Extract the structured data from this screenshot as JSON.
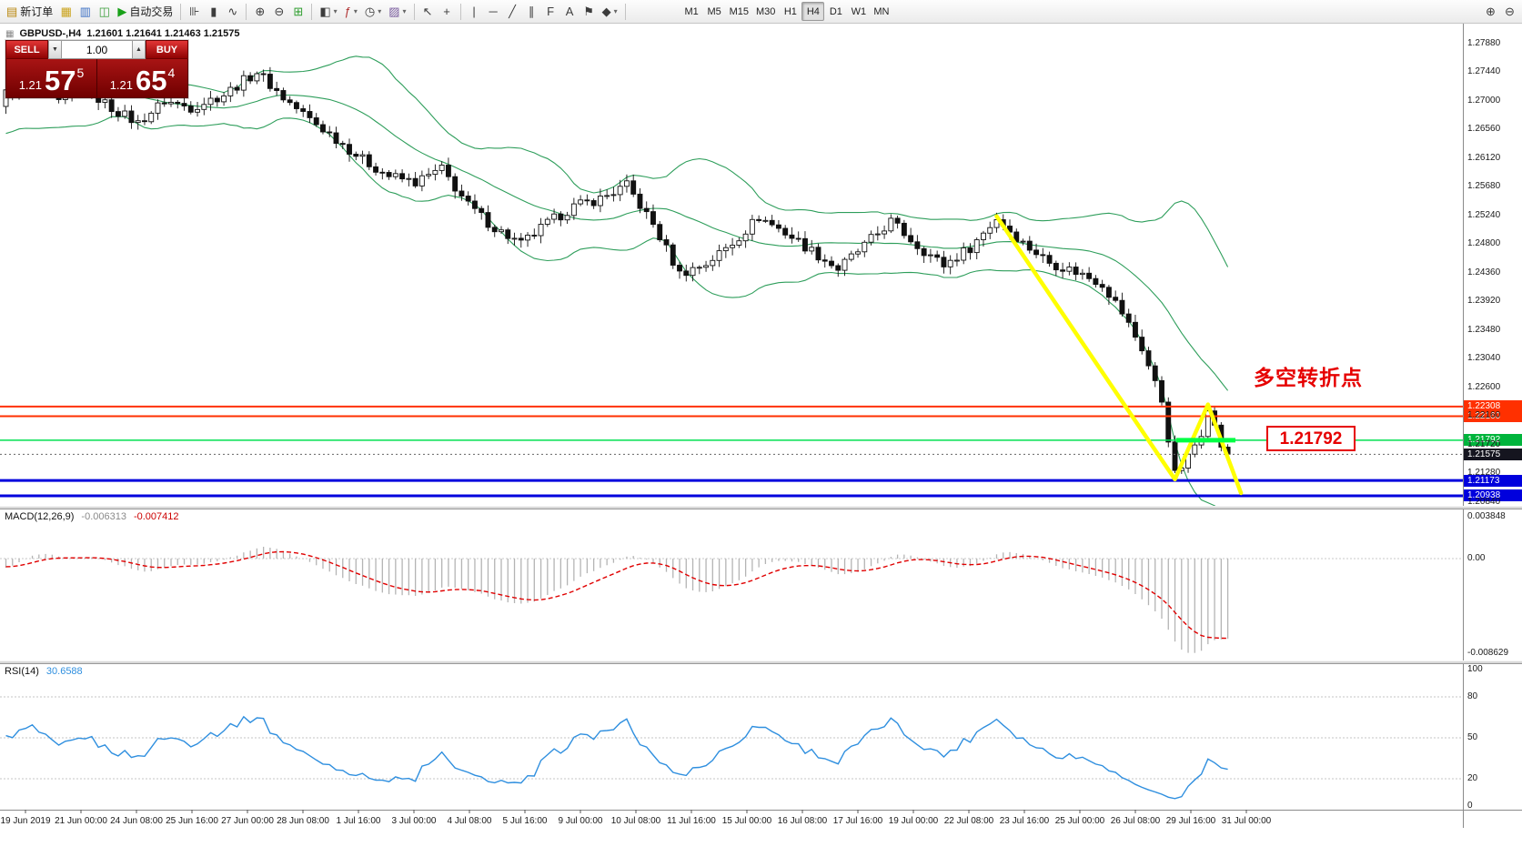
{
  "toolbar": {
    "dropdown_glyph": "▾",
    "groups": [
      {
        "name": "trading",
        "items": [
          {
            "name": "new-order",
            "glyph": "▤",
            "glyph_color": "#b8860b",
            "label": "新订单"
          },
          {
            "name": "chart-profiles",
            "glyph": "▦",
            "glyph_color": "#caa21a"
          },
          {
            "name": "market-watch",
            "glyph": "▥",
            "glyph_color": "#3b6fc4"
          },
          {
            "name": "navigator",
            "glyph": "◫",
            "glyph_color": "#3b9e3b"
          },
          {
            "name": "autotrading",
            "glyph": "▶",
            "glyph_color": "#18a018",
            "label": "自动交易"
          }
        ]
      },
      {
        "name": "chart-type",
        "items": [
          {
            "name": "bar-chart-mode",
            "glyph": "⊪"
          },
          {
            "name": "candlestick-mode",
            "glyph": "▮"
          },
          {
            "name": "line-chart-mode",
            "glyph": "∿"
          }
        ]
      },
      {
        "name": "zoom",
        "items": [
          {
            "name": "zoom-in",
            "glyph": "⊕"
          },
          {
            "name": "zoom-out",
            "glyph": "⊖"
          },
          {
            "name": "tile-windows",
            "glyph": "⊞",
            "glyph_color": "#2f9e2f"
          }
        ]
      },
      {
        "name": "chart-manage",
        "items": [
          {
            "name": "new-chart",
            "glyph": "◧",
            "dropdown": true
          },
          {
            "name": "indicators-list",
            "glyph": "ƒ",
            "glyph_color": "#b03030",
            "dropdown": true
          },
          {
            "name": "periods",
            "glyph": "◷",
            "dropdown": true
          },
          {
            "name": "templates",
            "glyph": "▨",
            "glyph_color": "#7a5c9e",
            "dropdown": true
          }
        ]
      },
      {
        "name": "cursor",
        "items": [
          {
            "name": "cursor",
            "glyph": "↖"
          },
          {
            "name": "crosshair",
            "glyph": "+"
          }
        ]
      },
      {
        "name": "drawing",
        "items": [
          {
            "name": "vertical-line-tool",
            "glyph": "|"
          },
          {
            "name": "horizontal-line-tool",
            "glyph": "─"
          },
          {
            "name": "trendline-tool",
            "glyph": "╱"
          },
          {
            "name": "channel-tool",
            "glyph": "∥"
          },
          {
            "name": "fibonacci-tool",
            "glyph": "F"
          },
          {
            "name": "text-tool",
            "glyph": "A"
          },
          {
            "name": "label-tool",
            "glyph": "⚑"
          },
          {
            "name": "shapes-tool",
            "glyph": "◆",
            "dropdown": true
          }
        ]
      }
    ],
    "timeframes": [
      "M1",
      "M5",
      "M15",
      "M30",
      "H1",
      "H4",
      "D1",
      "W1",
      "MN"
    ],
    "active_timeframe": "H4",
    "right_buttons": [
      {
        "name": "magnify-in",
        "glyph": "⊕"
      },
      {
        "name": "magnify-out",
        "glyph": "⊖"
      }
    ]
  },
  "symbol_header": {
    "icon": "▦",
    "title": "GBPUSD-,H4",
    "ohlc": "1.21601 1.21641 1.21463 1.21575"
  },
  "trade_panel": {
    "sell_label": "SELL",
    "buy_label": "BUY",
    "volume": "1.00",
    "step_down_icon": "▼",
    "step_up_icon": "▲",
    "sell_price": {
      "base": "1.21",
      "big": "57",
      "sup": "5"
    },
    "buy_price": {
      "base": "1.21",
      "big": "65",
      "sup": "4"
    }
  },
  "indicator_headers": {
    "macd": {
      "name": "MACD(12,26,9)",
      "main": "-0.006313",
      "signal": "-0.007412"
    },
    "rsi": {
      "name": "RSI(14)",
      "value": "30.6588"
    }
  },
  "annotations": {
    "turning_point": "多空转折点",
    "price_callout": "1.21792"
  },
  "colors": {
    "bollinger": "#2e9e5b",
    "candle": "#111111",
    "macd_hist": "#b4b4b4",
    "macd_signal": "#e00000",
    "rsi_line": "#2f8fdf",
    "yellow": "#ffff00",
    "green_segment": "#00ff44",
    "annotation_red": "#e60000"
  },
  "chart_data": [
    {
      "type": "candlestick",
      "title": "GBPUSD-,H4",
      "ohlc_header": [
        1.21601,
        1.21641,
        1.21463,
        1.21575
      ],
      "bars": 186,
      "last_close": 1.21575,
      "ylim": [
        1.2084,
        1.2788
      ],
      "y_ticks": [
        "1.27880",
        "1.27440",
        "1.27000",
        "1.26560",
        "1.26120",
        "1.25680",
        "1.25240",
        "1.24800",
        "1.24360",
        "1.23920",
        "1.23480",
        "1.23040",
        "1.22600",
        "1.22160",
        "1.21720",
        "1.21280",
        "1.20840"
      ],
      "price_path": [
        [
          0,
          1.2712
        ],
        [
          4,
          1.274
        ],
        [
          8,
          1.2697
        ],
        [
          12,
          1.2719
        ],
        [
          16,
          1.2689
        ],
        [
          20,
          1.2666
        ],
        [
          24,
          1.27
        ],
        [
          28,
          1.269
        ],
        [
          33,
          1.271
        ],
        [
          38,
          1.2745
        ],
        [
          42,
          1.2705
        ],
        [
          46,
          1.2672
        ],
        [
          50,
          1.2642
        ],
        [
          54,
          1.261
        ],
        [
          58,
          1.2585
        ],
        [
          62,
          1.2575
        ],
        [
          66,
          1.2595
        ],
        [
          70,
          1.254
        ],
        [
          74,
          1.2505
        ],
        [
          78,
          1.248
        ],
        [
          82,
          1.2512
        ],
        [
          86,
          1.2538
        ],
        [
          90,
          1.255
        ],
        [
          94,
          1.257
        ],
        [
          98,
          1.251
        ],
        [
          102,
          1.2435
        ],
        [
          106,
          1.245
        ],
        [
          110,
          1.2482
        ],
        [
          114,
          1.2522
        ],
        [
          118,
          1.2498
        ],
        [
          122,
          1.247
        ],
        [
          126,
          1.2442
        ],
        [
          130,
          1.2478
        ],
        [
          134,
          1.2515
        ],
        [
          138,
          1.2478
        ],
        [
          142,
          1.2448
        ],
        [
          146,
          1.2475
        ],
        [
          150,
          1.252
        ],
        [
          154,
          1.2482
        ],
        [
          158,
          1.2452
        ],
        [
          162,
          1.2438
        ],
        [
          166,
          1.242
        ],
        [
          169,
          1.2375
        ],
        [
          172,
          1.232
        ],
        [
          175,
          1.224
        ],
        [
          177,
          1.2126
        ],
        [
          179,
          1.2152
        ],
        [
          181,
          1.2192
        ],
        [
          182,
          1.2232
        ],
        [
          183,
          1.2199
        ],
        [
          184,
          1.2171
        ],
        [
          185,
          1.21575
        ]
      ],
      "bollinger": {
        "period": 20,
        "deviation": 2
      },
      "lines": [
        {
          "price": 1.22308,
          "color": "#ff3000",
          "width": 2,
          "tag_bg": "#ff3000"
        },
        {
          "price": 1.2216,
          "color": "#ff3000",
          "width": 2,
          "tag_bg": "#ff3000"
        },
        {
          "price": 1.21792,
          "color": "#00e050",
          "width": 1.5,
          "tag_bg": "#00b43c"
        },
        {
          "price": 1.21173,
          "color": "#0000dd",
          "width": 3,
          "tag_bg": "#0000dd"
        },
        {
          "price": 1.20938,
          "color": "#0000dd",
          "width": 3,
          "tag_bg": "#0000dd"
        }
      ],
      "current_price": {
        "price": 1.21575,
        "tag_bg": "#15151f"
      },
      "yellow_zigzag": [
        [
          150,
          1.2523
        ],
        [
          177,
          1.2119
        ],
        [
          182,
          1.2234
        ],
        [
          187,
          1.2098
        ]
      ],
      "green_segment": {
        "from": 177.5,
        "to": 186.5,
        "price": 1.21792
      },
      "x_labels": [
        "19 Jun 2019",
        "21 Jun 00:00",
        "24 Jun 08:00",
        "25 Jun 16:00",
        "27 Jun 00:00",
        "28 Jun 08:00",
        "1 Jul 16:00",
        "3 Jul 00:00",
        "4 Jul 08:00",
        "5 Jul 16:00",
        "9 Jul 00:00",
        "10 Jul 08:00",
        "11 Jul 16:00",
        "15 Jul 00:00",
        "16 Jul 08:00",
        "17 Jul 16:00",
        "19 Jul 00:00",
        "22 Jul 08:00",
        "23 Jul 16:00",
        "25 Jul 00:00",
        "26 Jul 08:00",
        "29 Jul 16:00",
        "31 Jul 00:00"
      ]
    },
    {
      "type": "macd",
      "label": "MACD(12,26,9)",
      "fast": 12,
      "slow": 26,
      "signal": 9,
      "value_main": -0.006313,
      "value_signal": -0.007412,
      "y_ticks": [
        "0.003848",
        "0.00",
        "-0.008629"
      ]
    },
    {
      "type": "rsi",
      "label": "RSI(14)",
      "period": 14,
      "value": 30.6588,
      "levels": [
        80,
        50,
        20
      ],
      "y_ticks": [
        "100",
        "80",
        "50",
        "20",
        "0"
      ]
    }
  ]
}
